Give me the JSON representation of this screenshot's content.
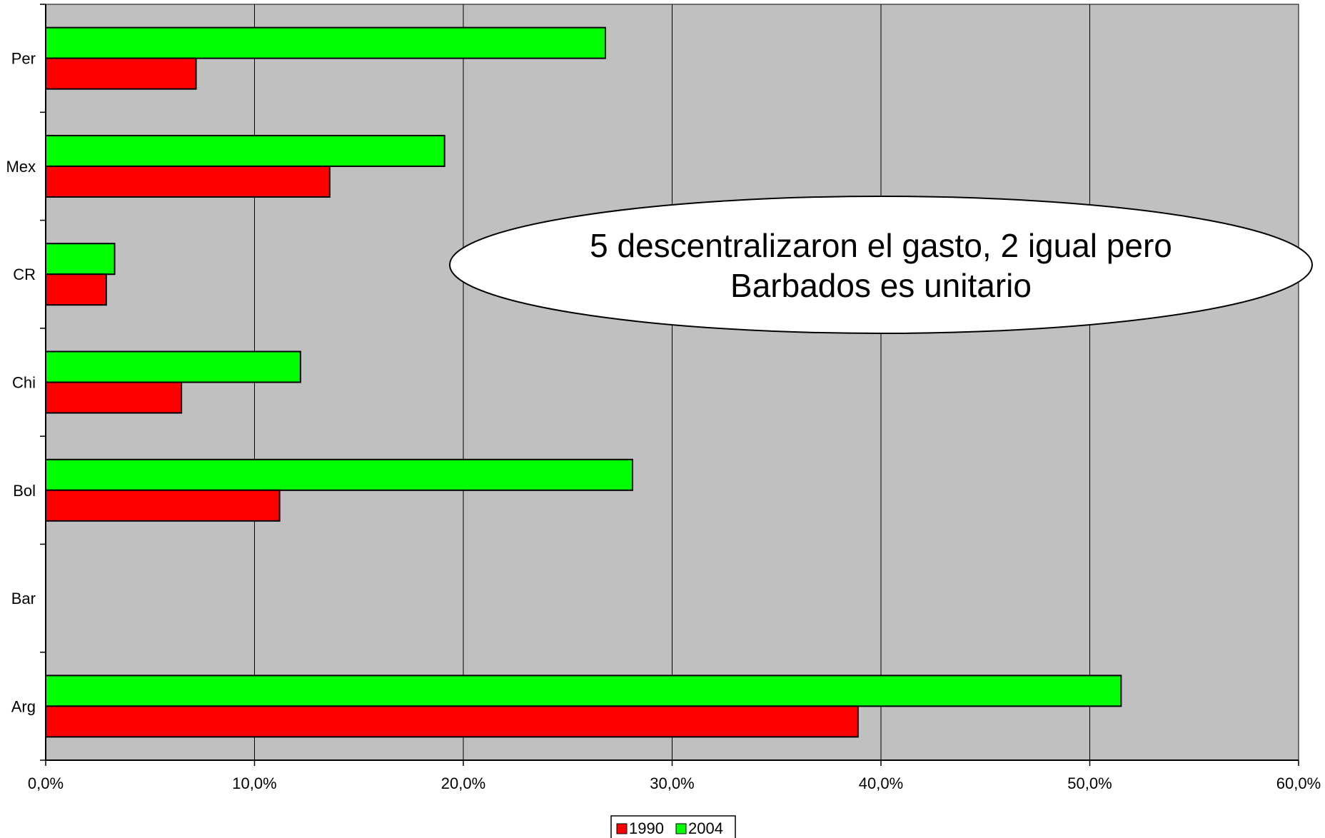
{
  "chart_data": {
    "type": "bar",
    "orientation": "horizontal",
    "categories": [
      "Per",
      "Mex",
      "CR",
      "Chi",
      "Bol",
      "Bar",
      "Arg"
    ],
    "series": [
      {
        "name": "1990",
        "color": "#ff0000",
        "values": [
          7.2,
          13.6,
          2.9,
          6.5,
          11.2,
          null,
          38.9
        ]
      },
      {
        "name": "2004",
        "color": "#00ff00",
        "values": [
          26.8,
          19.1,
          3.3,
          12.2,
          28.1,
          null,
          51.5
        ]
      }
    ],
    "x_ticks": [
      "0,0%",
      "10,0%",
      "20,0%",
      "30,0%",
      "40,0%",
      "50,0%",
      "60,0%"
    ],
    "xlim": [
      0,
      60
    ],
    "plot_background": "#c0c0c0",
    "grid": true,
    "legend": "bottom-center",
    "annotation": {
      "line1": "5 descentralizaron el gasto, 2 igual pero",
      "line2": "Barbados es unitario"
    }
  }
}
